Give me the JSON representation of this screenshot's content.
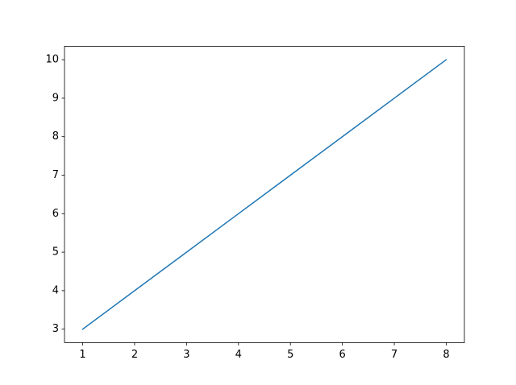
{
  "chart_data": {
    "type": "line",
    "x": [
      1,
      2,
      3,
      4,
      5,
      6,
      7,
      8
    ],
    "series": [
      {
        "color": "#1f77b4",
        "values": [
          3,
          4,
          5,
          6,
          7,
          8,
          9,
          10
        ]
      }
    ],
    "xlim": [
      0.65,
      8.35
    ],
    "xticks": [
      1,
      2,
      3,
      4,
      5,
      6,
      7,
      8
    ],
    "ylim": [
      2.65,
      10.35
    ],
    "yticks": [
      3,
      4,
      5,
      6,
      7,
      8,
      9,
      10
    ],
    "grid": false
  }
}
